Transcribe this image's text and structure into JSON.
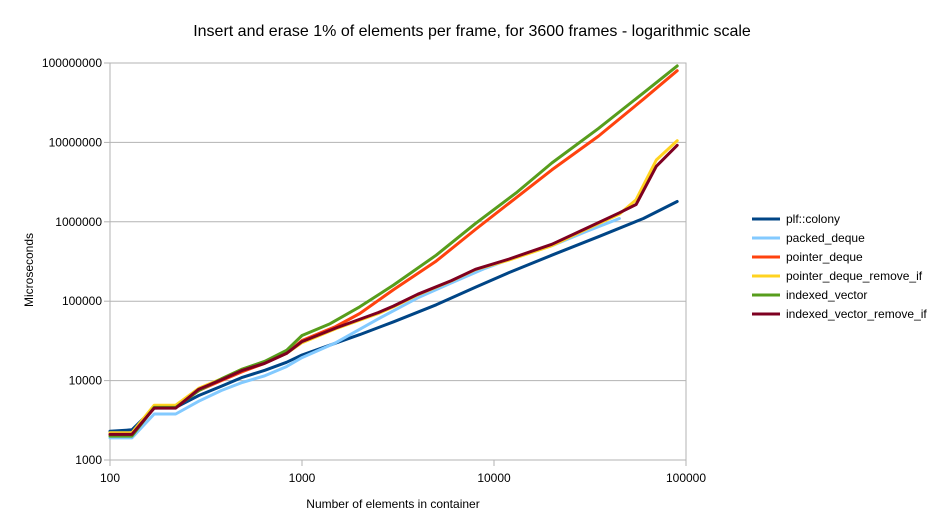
{
  "chart_data": {
    "type": "line",
    "title": "Insert and erase 1% of elements per frame, for 3600 frames - logarithmic scale",
    "xlabel": "Number of elements in container",
    "ylabel": "Microseconds",
    "x_scale": "log",
    "y_scale": "log",
    "xlim": [
      100,
      100000
    ],
    "ylim": [
      1000,
      100000000
    ],
    "x_ticks": [
      "100",
      "1000",
      "10000",
      "100000"
    ],
    "y_ticks": [
      "1000",
      "10000",
      "100000",
      "1000000",
      "10000000",
      "100000000"
    ],
    "grid": "horizontal",
    "legend_position": "right",
    "series": [
      {
        "name": "plf::colony",
        "color": "#004586",
        "points": [
          [
            100,
            2300
          ],
          [
            130,
            2400
          ],
          [
            170,
            4500
          ],
          [
            220,
            4600
          ],
          [
            290,
            6500
          ],
          [
            380,
            8500
          ],
          [
            490,
            11000
          ],
          [
            640,
            13500
          ],
          [
            830,
            17000
          ],
          [
            1000,
            21000
          ],
          [
            1400,
            28000
          ],
          [
            2000,
            38000
          ],
          [
            3000,
            55000
          ],
          [
            5000,
            90000
          ],
          [
            8000,
            150000
          ],
          [
            12000,
            230000
          ],
          [
            20000,
            380000
          ],
          [
            35000,
            650000
          ],
          [
            60000,
            1100000
          ],
          [
            90000,
            1800000
          ]
        ]
      },
      {
        "name": "packed_deque",
        "color": "#83caff",
        "points": [
          [
            100,
            1900
          ],
          [
            130,
            1900
          ],
          [
            170,
            3800
          ],
          [
            220,
            3800
          ],
          [
            290,
            5500
          ],
          [
            380,
            7500
          ],
          [
            490,
            9500
          ],
          [
            640,
            11500
          ],
          [
            830,
            15000
          ],
          [
            1000,
            19500
          ],
          [
            1500,
            30000
          ],
          [
            2500,
            60000
          ],
          [
            4000,
            110000
          ],
          [
            6000,
            170000
          ],
          [
            9000,
            260000
          ],
          [
            13000,
            360000
          ],
          [
            20000,
            500000
          ],
          [
            30000,
            750000
          ],
          [
            45000,
            1100000
          ]
        ]
      },
      {
        "name": "pointer_deque",
        "color": "#ff420e",
        "points": [
          [
            100,
            2100
          ],
          [
            130,
            2100
          ],
          [
            170,
            4800
          ],
          [
            220,
            4800
          ],
          [
            290,
            7500
          ],
          [
            380,
            10000
          ],
          [
            490,
            13000
          ],
          [
            640,
            16500
          ],
          [
            830,
            22000
          ],
          [
            1000,
            32000
          ],
          [
            1500,
            48000
          ],
          [
            2000,
            70000
          ],
          [
            3000,
            140000
          ],
          [
            5000,
            320000
          ],
          [
            8000,
            800000
          ],
          [
            13000,
            2000000
          ],
          [
            20000,
            4500000
          ],
          [
            35000,
            12000000
          ],
          [
            60000,
            35000000
          ],
          [
            90000,
            80000000
          ]
        ]
      },
      {
        "name": "pointer_deque_remove_if",
        "color": "#ffd320",
        "points": [
          [
            100,
            2200
          ],
          [
            130,
            2200
          ],
          [
            170,
            4900
          ],
          [
            220,
            4900
          ],
          [
            290,
            8000
          ],
          [
            380,
            10500
          ],
          [
            490,
            14000
          ],
          [
            640,
            17000
          ],
          [
            830,
            22000
          ],
          [
            1000,
            30000
          ],
          [
            1500,
            45000
          ],
          [
            2500,
            70000
          ],
          [
            3000,
            85000
          ],
          [
            4000,
            120000
          ],
          [
            6000,
            180000
          ],
          [
            8000,
            250000
          ],
          [
            12000,
            330000
          ],
          [
            20000,
            500000
          ],
          [
            30000,
            800000
          ],
          [
            45000,
            1250000
          ],
          [
            55000,
            1900000
          ],
          [
            70000,
            6000000
          ],
          [
            90000,
            10500000
          ]
        ]
      },
      {
        "name": "indexed_vector",
        "color": "#579d1c",
        "points": [
          [
            100,
            2000
          ],
          [
            130,
            2000
          ],
          [
            170,
            4600
          ],
          [
            220,
            4600
          ],
          [
            290,
            7500
          ],
          [
            380,
            10500
          ],
          [
            490,
            14000
          ],
          [
            640,
            17500
          ],
          [
            830,
            24000
          ],
          [
            1000,
            37000
          ],
          [
            1400,
            52000
          ],
          [
            2000,
            85000
          ],
          [
            3000,
            160000
          ],
          [
            5000,
            380000
          ],
          [
            8000,
            950000
          ],
          [
            13000,
            2300000
          ],
          [
            20000,
            5500000
          ],
          [
            35000,
            15000000
          ],
          [
            60000,
            42000000
          ],
          [
            90000,
            92000000
          ]
        ]
      },
      {
        "name": "indexed_vector_remove_if",
        "color": "#7e0021",
        "points": [
          [
            100,
            2100
          ],
          [
            130,
            2100
          ],
          [
            170,
            4500
          ],
          [
            220,
            4500
          ],
          [
            290,
            7800
          ],
          [
            380,
            10200
          ],
          [
            490,
            13500
          ],
          [
            640,
            16500
          ],
          [
            830,
            22000
          ],
          [
            1000,
            31000
          ],
          [
            1500,
            46000
          ],
          [
            2500,
            72000
          ],
          [
            3000,
            87000
          ],
          [
            4000,
            122000
          ],
          [
            6000,
            182000
          ],
          [
            8000,
            252000
          ],
          [
            12000,
            340000
          ],
          [
            20000,
            520000
          ],
          [
            30000,
            820000
          ],
          [
            45000,
            1300000
          ],
          [
            55000,
            1650000
          ],
          [
            70000,
            5000000
          ],
          [
            90000,
            9200000
          ]
        ]
      }
    ]
  }
}
